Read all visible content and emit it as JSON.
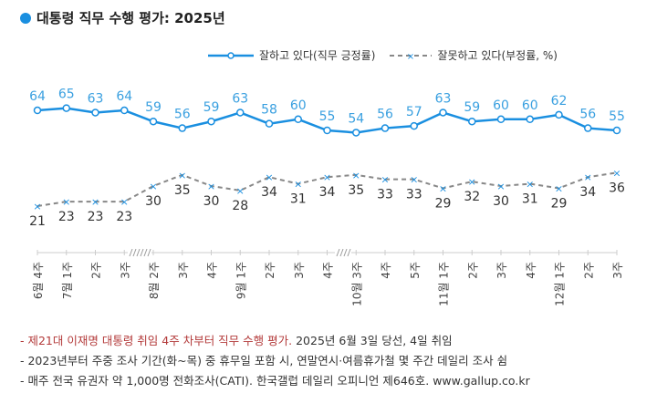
{
  "title": "대통령 직무 수행 평가: 2025년",
  "colors": {
    "approve": "#1a8fe0",
    "disapprove": "#888888",
    "approve_label": "#3aa0e0",
    "disapprove_label": "#333333",
    "note_red": "#b33a3a"
  },
  "chart_data": {
    "type": "line",
    "legend_position": "top-right",
    "grid": false,
    "categories": [
      "6월 4주",
      "7월 1주",
      "2주",
      "3주",
      "8월 2주",
      "3주",
      "4주",
      "9월 1주",
      "2주",
      "3주",
      "4주",
      "10월 3주",
      "4주",
      "5주",
      "11월 1주",
      "2주",
      "3주",
      "4주",
      "12월 1주",
      "2주",
      "3주"
    ],
    "axis_breaks_after": [
      "3주",
      "4주"
    ],
    "series": [
      {
        "name": "잘하고 있다(직무 긍정률)",
        "marker": "circle",
        "style": "solid",
        "values": [
          64,
          65,
          63,
          64,
          59,
          56,
          59,
          63,
          58,
          60,
          55,
          54,
          56,
          57,
          63,
          59,
          60,
          60,
          62,
          56,
          55
        ]
      },
      {
        "name": "잘못하고 있다(부정률, %)",
        "marker": "x",
        "style": "dashed",
        "values": [
          21,
          23,
          23,
          23,
          30,
          35,
          30,
          28,
          34,
          31,
          34,
          35,
          33,
          33,
          29,
          32,
          30,
          31,
          29,
          34,
          36
        ]
      }
    ]
  },
  "notes": [
    {
      "red": "- 제21대 이재명 대통령 취임 4주 차부터 직무 수행 평가.",
      "rest": " 2025년 6월 3일 당선, 4일 취임"
    },
    {
      "red": "",
      "rest": "- 2023년부터 주중 조사 기간(화~목) 중 휴무일 포함 시, 연말연시·여름휴가철 몇 주간 데일리 조사 쉼"
    },
    {
      "red": "",
      "rest": "- 매주 전국 유권자 약 1,000명 전화조사(CATI). 한국갤럽 데일리 오피니언 제646호. www.gallup.co.kr"
    }
  ]
}
